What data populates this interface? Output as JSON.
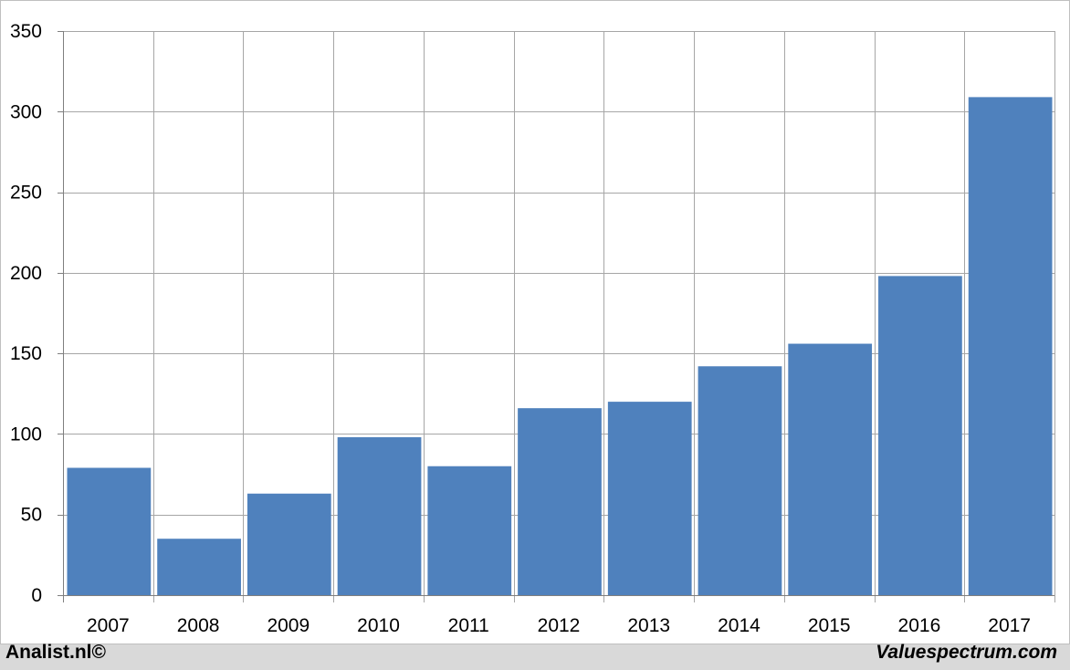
{
  "chart_data": {
    "type": "bar",
    "categories": [
      "2007",
      "2008",
      "2009",
      "2010",
      "2011",
      "2012",
      "2013",
      "2014",
      "2015",
      "2016",
      "2017"
    ],
    "values": [
      79,
      35,
      63,
      98,
      80,
      116,
      120,
      142,
      156,
      198,
      309
    ],
    "ylim": [
      0,
      350
    ],
    "yticks": [
      0,
      50,
      100,
      150,
      200,
      250,
      300,
      350
    ],
    "grid": true,
    "bar_color": "#4f81bd",
    "grid_color": "#a6a6a6"
  },
  "footer": {
    "left": "Analist.nl©",
    "right": "Valuespectrum.com"
  }
}
